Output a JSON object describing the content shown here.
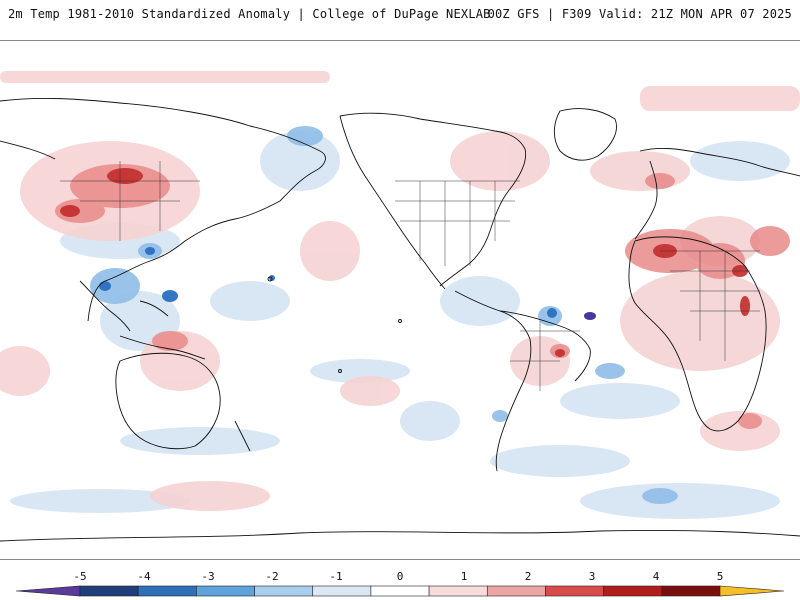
{
  "header": {
    "title_left": "2m Temp 1981-2010 Standardized Anomaly | College of DuPage NEXLAB",
    "title_right": "00Z GFS | F309 Valid: 21Z MON APR 07 2025"
  },
  "colorbar": {
    "tick_labels": [
      "-5",
      "-4",
      "-3",
      "-2",
      "-1",
      "0",
      "1",
      "2",
      "3",
      "4",
      "5"
    ],
    "colors": [
      "#5b3a9c",
      "#1f3e7a",
      "#2e6fb8",
      "#5fa3dc",
      "#a9cdec",
      "#dbe7f5",
      "#ffffff",
      "#f7dcdc",
      "#eca5a5",
      "#d94c4c",
      "#b11d1d",
      "#7a0e0e",
      "#f4c025"
    ]
  },
  "map": {
    "projection": "Global equirectangular, centered on the Pacific (180°)",
    "field": "2m temperature standardized anomaly",
    "colors": {
      "strong_warm": "#c22c2c",
      "warm": "#e98a8a",
      "weak_warm": "#f6d3d3",
      "weak_cool": "#d5e4f3",
      "cool": "#8fbde7",
      "strong_cool": "#2a6fc2",
      "coast": "#111111",
      "ocean": "#ffffff"
    }
  }
}
